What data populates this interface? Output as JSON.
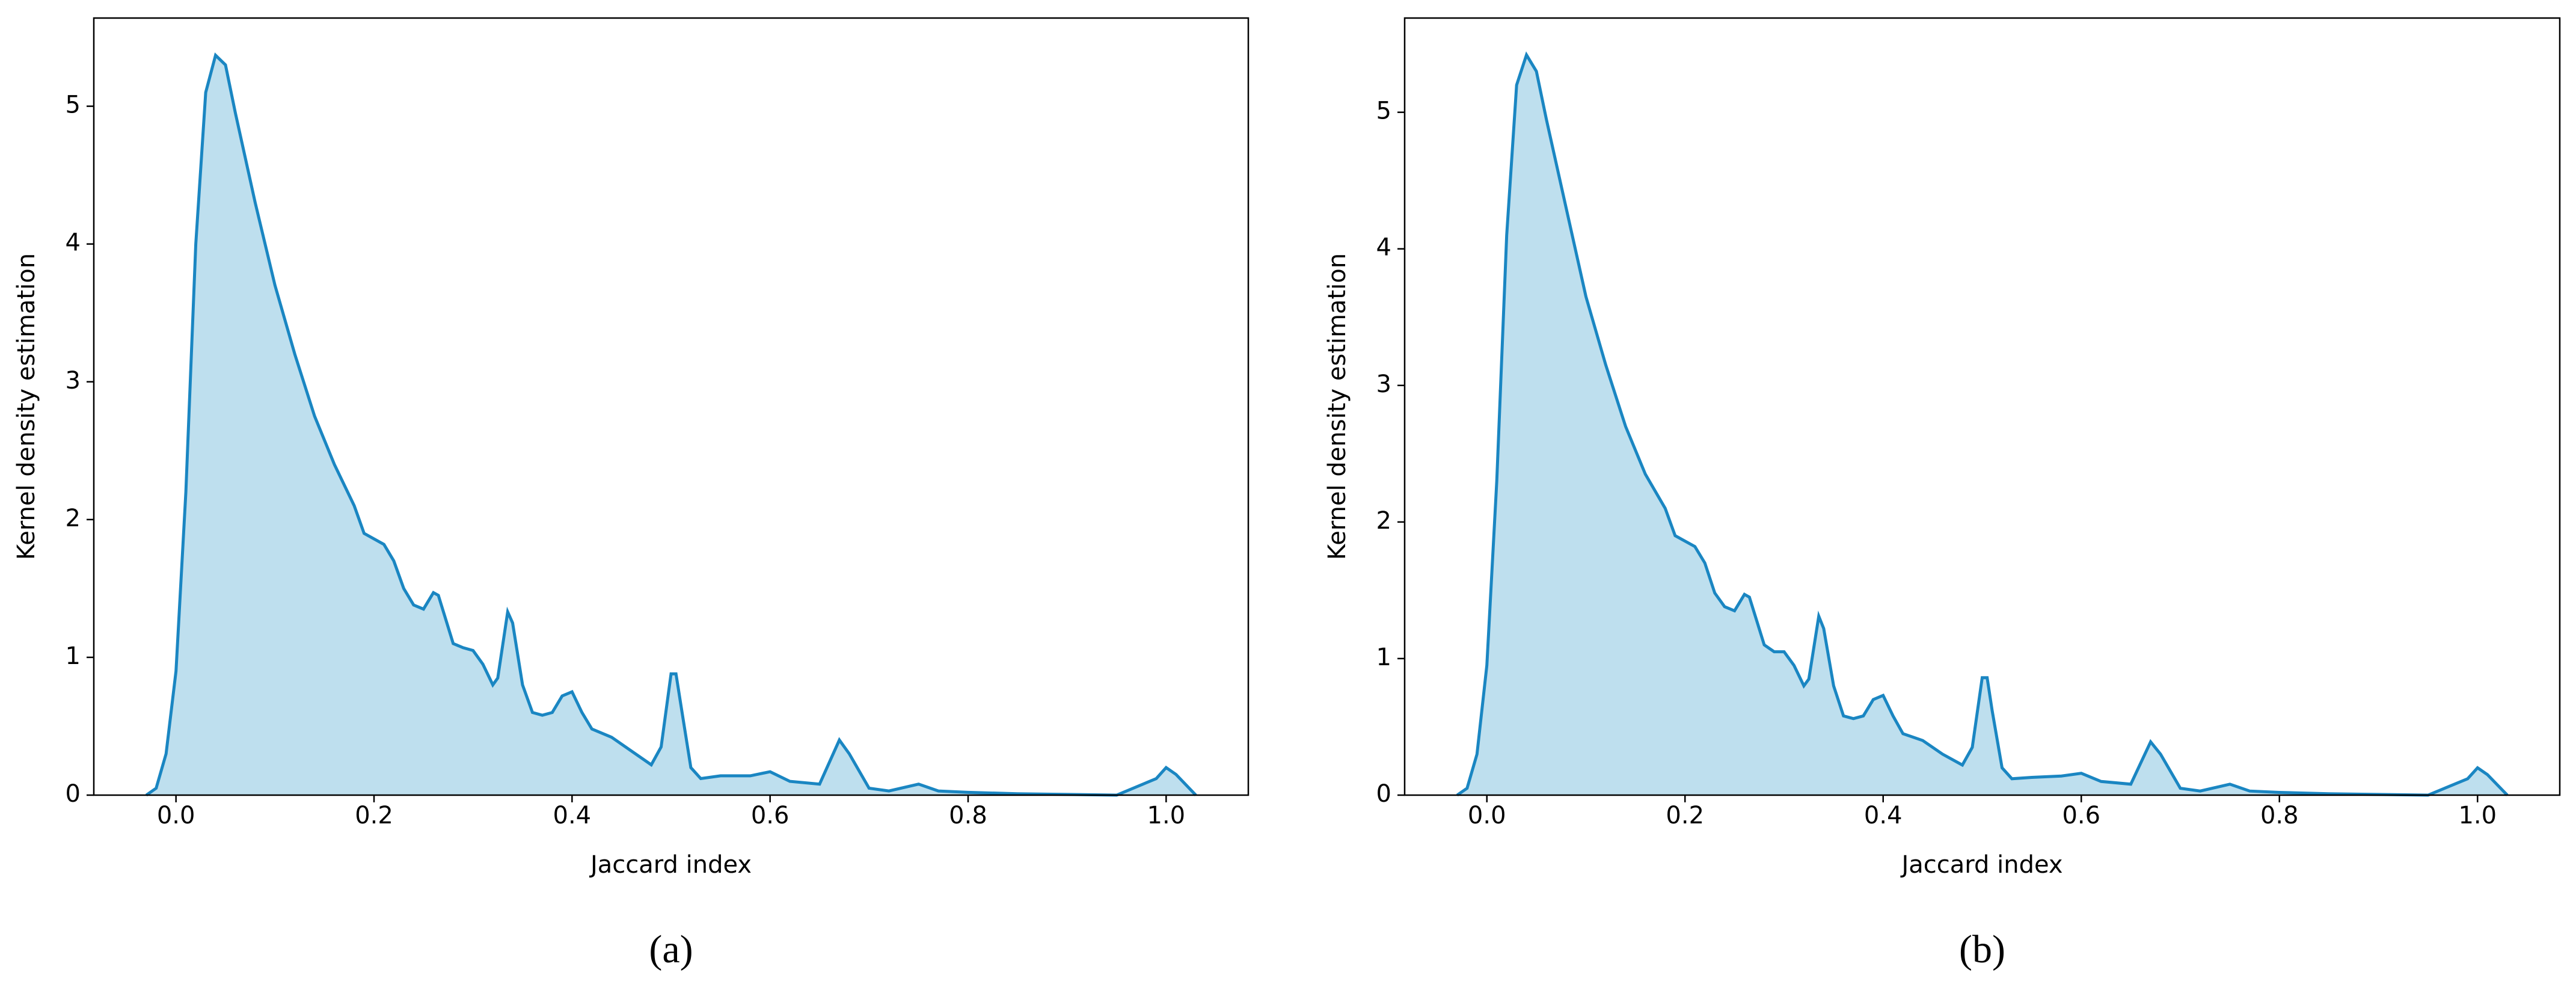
{
  "chart_data": [
    {
      "type": "area",
      "caption": "(a)",
      "x_label": "Jaccard index",
      "y_label": "Kernel density estimation",
      "color": "#1a86c2",
      "fill": "#bedfee",
      "grid": false,
      "xlim": [
        -0.083,
        1.083
      ],
      "ylim": [
        0,
        5.64
      ],
      "xticks": [
        {
          "value": 0,
          "label": "0.0"
        },
        0.2,
        0.4,
        0.6,
        0.8,
        {
          "value": 1,
          "label": "1.0"
        }
      ],
      "yticks": [
        0,
        1,
        2,
        3,
        4,
        5
      ],
      "x": [
        -0.03,
        -0.02,
        -0.01,
        0.0,
        0.01,
        0.02,
        0.03,
        0.04,
        0.05,
        0.06,
        0.08,
        0.1,
        0.12,
        0.14,
        0.16,
        0.18,
        0.19,
        0.21,
        0.22,
        0.23,
        0.24,
        0.25,
        0.26,
        0.265,
        0.28,
        0.29,
        0.3,
        0.31,
        0.32,
        0.325,
        0.335,
        0.34,
        0.35,
        0.36,
        0.37,
        0.38,
        0.39,
        0.4,
        0.41,
        0.42,
        0.44,
        0.46,
        0.48,
        0.49,
        0.5,
        0.505,
        0.51,
        0.52,
        0.53,
        0.55,
        0.58,
        0.6,
        0.62,
        0.65,
        0.67,
        0.68,
        0.7,
        0.72,
        0.75,
        0.77,
        0.8,
        0.85,
        0.95,
        0.99,
        1.0,
        1.01,
        1.03
      ],
      "values": [
        0,
        0.05,
        0.3,
        0.9,
        2.2,
        4.0,
        5.1,
        5.37,
        5.3,
        4.95,
        4.3,
        3.7,
        3.2,
        2.75,
        2.4,
        2.1,
        1.9,
        1.82,
        1.7,
        1.5,
        1.38,
        1.35,
        1.47,
        1.45,
        1.1,
        1.07,
        1.05,
        0.95,
        0.8,
        0.85,
        1.33,
        1.25,
        0.8,
        0.6,
        0.58,
        0.6,
        0.72,
        0.75,
        0.6,
        0.48,
        0.42,
        0.32,
        0.22,
        0.35,
        0.88,
        0.88,
        0.65,
        0.2,
        0.12,
        0.14,
        0.14,
        0.17,
        0.1,
        0.08,
        0.4,
        0.3,
        0.05,
        0.03,
        0.08,
        0.03,
        0.02,
        0.01,
        0,
        0.12,
        0.2,
        0.15,
        0
      ]
    },
    {
      "type": "area",
      "caption": "(b)",
      "x_label": "Jaccard index",
      "y_label": "Kernel density estimation",
      "color": "#1a86c2",
      "fill": "#bedfee",
      "grid": false,
      "xlim": [
        -0.083,
        1.083
      ],
      "ylim": [
        0,
        5.69
      ],
      "xticks": [
        {
          "value": 0,
          "label": "0.0"
        },
        0.2,
        0.4,
        0.6,
        0.8,
        {
          "value": 1,
          "label": "1.0"
        }
      ],
      "yticks": [
        0,
        1,
        2,
        3,
        4,
        5
      ],
      "x": [
        -0.03,
        -0.02,
        -0.01,
        0.0,
        0.01,
        0.02,
        0.03,
        0.04,
        0.05,
        0.06,
        0.08,
        0.1,
        0.12,
        0.14,
        0.16,
        0.18,
        0.19,
        0.21,
        0.22,
        0.23,
        0.24,
        0.25,
        0.26,
        0.265,
        0.28,
        0.29,
        0.3,
        0.31,
        0.32,
        0.325,
        0.335,
        0.34,
        0.35,
        0.36,
        0.37,
        0.38,
        0.39,
        0.4,
        0.41,
        0.42,
        0.44,
        0.46,
        0.48,
        0.49,
        0.5,
        0.505,
        0.51,
        0.52,
        0.53,
        0.55,
        0.58,
        0.6,
        0.62,
        0.65,
        0.67,
        0.68,
        0.7,
        0.72,
        0.75,
        0.77,
        0.8,
        0.85,
        0.95,
        0.99,
        1.0,
        1.01,
        1.03
      ],
      "values": [
        0,
        0.05,
        0.3,
        0.95,
        2.3,
        4.1,
        5.2,
        5.42,
        5.3,
        4.95,
        4.3,
        3.65,
        3.15,
        2.7,
        2.35,
        2.1,
        1.9,
        1.82,
        1.7,
        1.48,
        1.38,
        1.35,
        1.47,
        1.45,
        1.1,
        1.05,
        1.05,
        0.95,
        0.8,
        0.85,
        1.31,
        1.22,
        0.8,
        0.58,
        0.56,
        0.58,
        0.7,
        0.73,
        0.58,
        0.45,
        0.4,
        0.3,
        0.22,
        0.35,
        0.86,
        0.86,
        0.62,
        0.2,
        0.12,
        0.13,
        0.14,
        0.16,
        0.1,
        0.08,
        0.39,
        0.3,
        0.05,
        0.03,
        0.08,
        0.03,
        0.02,
        0.01,
        0,
        0.12,
        0.2,
        0.15,
        0
      ]
    }
  ]
}
